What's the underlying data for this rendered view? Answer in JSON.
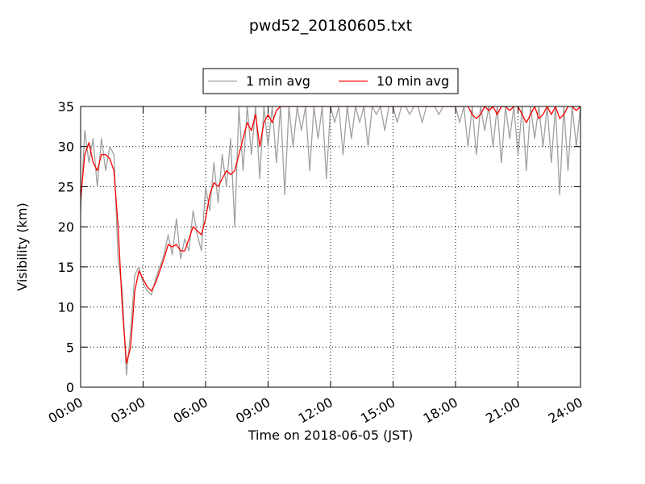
{
  "chart_data": {
    "type": "line",
    "title": "pwd52_20180605.txt",
    "xlabel": "Time on 2018-06-05 (JST)",
    "ylabel": "Visibility (km)",
    "x": [
      0,
      0.2,
      0.4,
      0.6,
      0.8,
      1,
      1.2,
      1.4,
      1.6,
      1.8,
      2,
      2.2,
      2.4,
      2.6,
      2.8,
      3,
      3.2,
      3.4,
      3.6,
      3.8,
      4,
      4.2,
      4.4,
      4.6,
      4.8,
      5,
      5.2,
      5.4,
      5.6,
      5.8,
      6,
      6.2,
      6.4,
      6.6,
      6.8,
      7,
      7.2,
      7.4,
      7.6,
      7.8,
      8,
      8.2,
      8.4,
      8.6,
      8.8,
      9,
      9.2,
      9.4,
      9.6,
      9.8,
      10,
      10.2,
      10.4,
      10.6,
      10.8,
      11,
      11.2,
      11.4,
      11.6,
      11.8,
      12,
      12.2,
      12.4,
      12.6,
      12.8,
      13,
      13.2,
      13.4,
      13.6,
      13.8,
      14,
      14.2,
      14.4,
      14.6,
      14.8,
      15,
      15.2,
      15.4,
      15.6,
      15.8,
      16,
      16.2,
      16.4,
      16.6,
      16.8,
      17,
      17.2,
      17.4,
      17.6,
      17.8,
      18,
      18.2,
      18.4,
      18.6,
      18.8,
      19,
      19.2,
      19.4,
      19.6,
      19.8,
      20,
      20.2,
      20.4,
      20.6,
      20.8,
      21,
      21.2,
      21.4,
      21.6,
      21.8,
      22,
      22.2,
      22.4,
      22.6,
      22.8,
      23,
      23.2,
      23.4,
      23.6,
      23.8,
      24
    ],
    "series": [
      {
        "name": "1 min avg",
        "color": "#a0a0a0",
        "values": [
          22,
          32,
          28,
          31,
          25,
          31,
          27,
          30,
          29,
          16,
          12,
          1.5,
          7,
          14,
          15,
          13,
          12,
          11.5,
          13.5,
          15,
          16.5,
          19,
          16.5,
          21,
          16,
          18.5,
          17,
          22,
          19,
          17,
          25,
          22,
          28,
          23,
          29,
          25,
          31,
          20,
          35,
          27,
          35,
          29,
          35,
          26,
          35,
          30,
          35,
          28,
          35,
          24,
          35,
          30,
          35,
          32,
          35,
          27,
          35,
          31,
          35,
          26,
          35,
          33,
          35,
          29,
          35,
          31,
          35,
          33,
          35,
          30,
          35,
          34,
          35,
          32,
          35,
          35,
          33,
          35,
          35,
          34,
          35,
          35,
          33,
          35,
          35,
          35,
          34,
          35,
          35,
          35,
          35,
          33,
          35,
          30,
          35,
          29,
          35,
          32,
          35,
          30,
          35,
          28,
          35,
          31,
          35,
          29,
          35,
          27,
          35,
          31,
          35,
          30,
          35,
          28,
          35,
          24,
          35,
          27,
          35,
          30,
          35
        ]
      },
      {
        "name": "10 min avg",
        "color": "#ff0000",
        "values": [
          23.5,
          29,
          30.5,
          28,
          27,
          29,
          29,
          28.5,
          27,
          20,
          10,
          3,
          5,
          12,
          14.5,
          13.5,
          12.5,
          12,
          13,
          14.5,
          16,
          17.8,
          17.5,
          17.8,
          17,
          17,
          18.5,
          20,
          19.5,
          19,
          21,
          24,
          25.5,
          25,
          26,
          27,
          26.5,
          27,
          29,
          31,
          33,
          32,
          34,
          30,
          33,
          34,
          33,
          34.5,
          35,
          35,
          35,
          35,
          35,
          35,
          35,
          35,
          35,
          35,
          35,
          35,
          35,
          35,
          35,
          35,
          35,
          35,
          35,
          35,
          35,
          35,
          35,
          35,
          35,
          35,
          35,
          35,
          35,
          35,
          35,
          35,
          35,
          35,
          35,
          35,
          35,
          35,
          35,
          35,
          35,
          35,
          35,
          35,
          35,
          35,
          34,
          33.5,
          34,
          35,
          34.5,
          35,
          34,
          35,
          35,
          34.5,
          35,
          35,
          34,
          33,
          34,
          35,
          33.5,
          34,
          35,
          34,
          35,
          33.5,
          34,
          35,
          35,
          34.5,
          35
        ]
      }
    ],
    "xlim": [
      0,
      24
    ],
    "xticks": [
      {
        "value": 0,
        "label": "00:00"
      },
      {
        "value": 3,
        "label": "03:00"
      },
      {
        "value": 6,
        "label": "06:00"
      },
      {
        "value": 9,
        "label": "09:00"
      },
      {
        "value": 12,
        "label": "12:00"
      },
      {
        "value": 15,
        "label": "15:00"
      },
      {
        "value": 18,
        "label": "18:00"
      },
      {
        "value": 21,
        "label": "21:00"
      },
      {
        "value": 24,
        "label": "24:00"
      }
    ],
    "ylim": [
      0,
      35
    ],
    "yticks": [
      0,
      5,
      10,
      15,
      20,
      25,
      30,
      35
    ],
    "grid": true,
    "legend": "top"
  }
}
